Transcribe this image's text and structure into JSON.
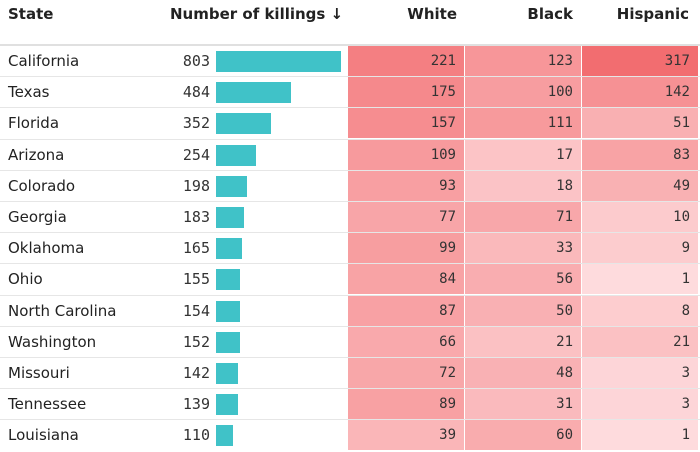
{
  "headers": {
    "state": "State",
    "killings": "Number of killings ↓",
    "white": "White",
    "black": "Black",
    "hispanic": "Hispanic"
  },
  "colors": {
    "bar": "#40c2c8",
    "heat_max": "#f26d70",
    "heat_min": "#ffffff"
  },
  "chart_data": {
    "type": "table",
    "columns": [
      "State",
      "Number of killings ↓",
      "White",
      "Black",
      "Hispanic"
    ],
    "rows": [
      {
        "state": "California",
        "killings": 803,
        "white": 221,
        "black": 123,
        "hispanic": 317
      },
      {
        "state": "Texas",
        "killings": 484,
        "white": 175,
        "black": 100,
        "hispanic": 142
      },
      {
        "state": "Florida",
        "killings": 352,
        "white": 157,
        "black": 111,
        "hispanic": 51
      },
      {
        "state": "Arizona",
        "killings": 254,
        "white": 109,
        "black": 17,
        "hispanic": 83
      },
      {
        "state": "Colorado",
        "killings": 198,
        "white": 93,
        "black": 18,
        "hispanic": 49
      },
      {
        "state": "Georgia",
        "killings": 183,
        "white": 77,
        "black": 71,
        "hispanic": 10
      },
      {
        "state": "Oklahoma",
        "killings": 165,
        "white": 99,
        "black": 33,
        "hispanic": 9
      },
      {
        "state": "Ohio",
        "killings": 155,
        "white": 84,
        "black": 56,
        "hispanic": 1
      },
      {
        "state": "North Carolina",
        "killings": 154,
        "white": 87,
        "black": 50,
        "hispanic": 8
      },
      {
        "state": "Washington",
        "killings": 152,
        "white": 66,
        "black": 21,
        "hispanic": 21
      },
      {
        "state": "Missouri",
        "killings": 142,
        "white": 72,
        "black": 48,
        "hispanic": 3
      },
      {
        "state": "Tennessee",
        "killings": 139,
        "white": 89,
        "black": 31,
        "hispanic": 3
      },
      {
        "state": "Louisiana",
        "killings": 110,
        "white": 39,
        "black": 60,
        "hispanic": 1
      }
    ]
  }
}
